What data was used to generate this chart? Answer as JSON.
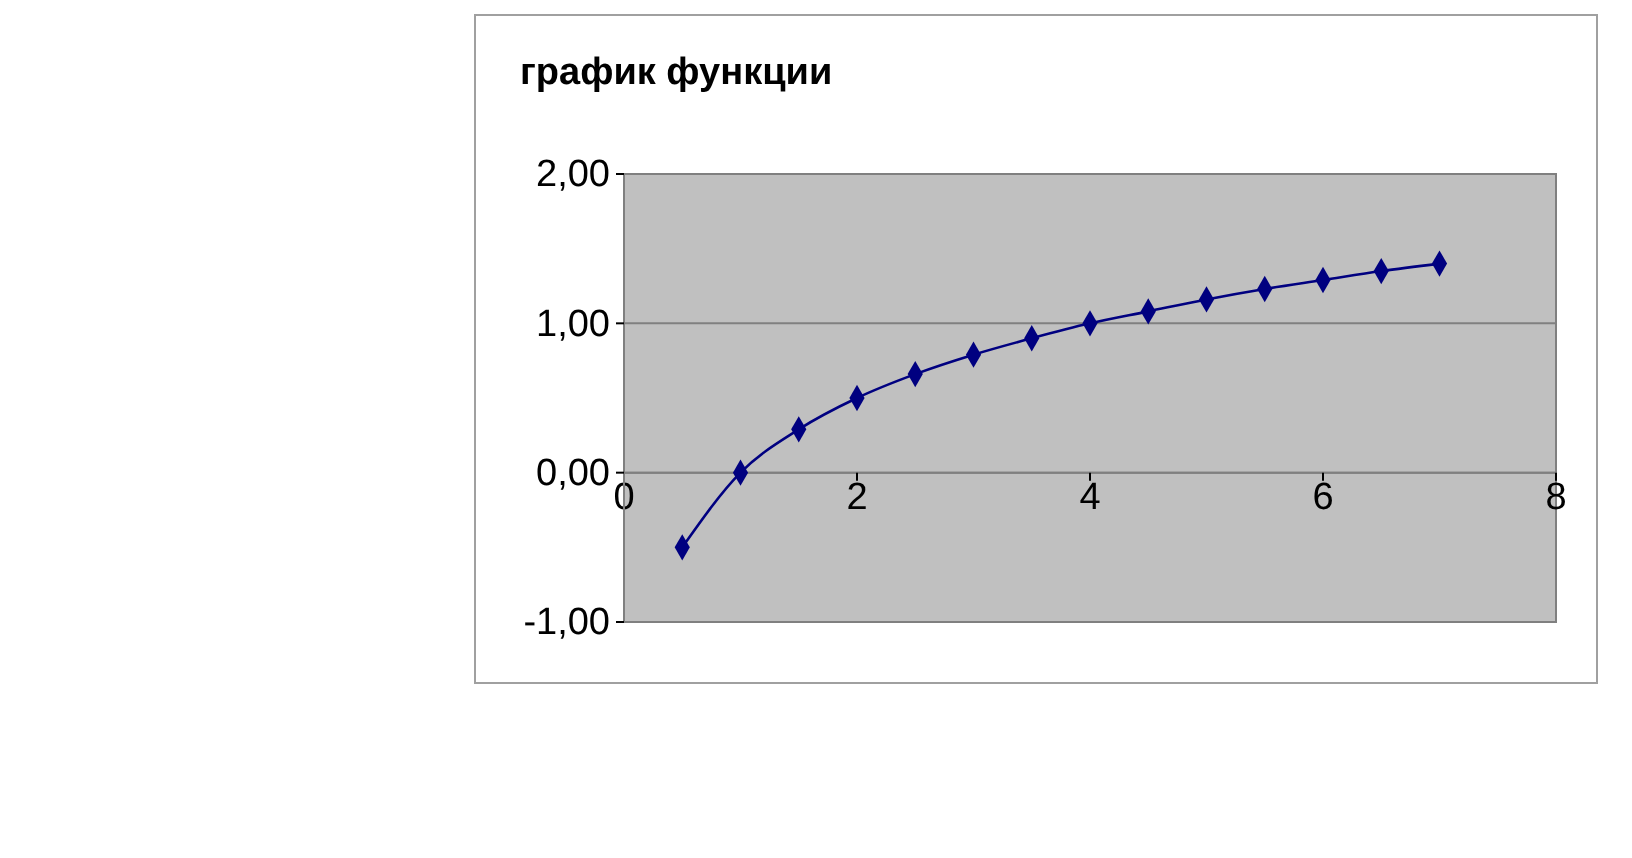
{
  "chart_data": {
    "type": "line",
    "title": "график функции",
    "x": [
      0.5,
      1,
      1.5,
      2,
      2.5,
      3,
      3.5,
      4,
      4.5,
      5,
      5.5,
      6,
      6.5,
      7
    ],
    "series": [
      {
        "color": "#000080",
        "values": [
          -0.5,
          0,
          0.29,
          0.5,
          0.66,
          0.79,
          0.9,
          1.0,
          1.08,
          1.16,
          1.23,
          1.29,
          1.35,
          1.4
        ]
      }
    ],
    "xlim": [
      0,
      8
    ],
    "xticks": [
      0,
      2,
      4,
      6,
      8
    ],
    "ylim": [
      -1,
      2
    ],
    "yticks": [
      {
        "value": -1,
        "label": "-1,00"
      },
      {
        "value": 0,
        "label": "0,00"
      },
      {
        "value": 1,
        "label": "1,00"
      },
      {
        "value": 2,
        "label": "2,00"
      }
    ],
    "grid": "y",
    "marker": "diamond",
    "line_style": "solid"
  }
}
